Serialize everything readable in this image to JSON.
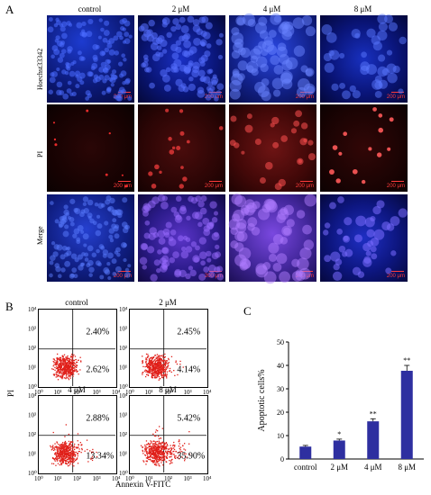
{
  "panel_a": {
    "letter": "A",
    "columns": [
      "control",
      "2 μM",
      "4 μM",
      "8 μM"
    ],
    "rows": [
      "Hoechst33342",
      "PI",
      "Merge"
    ],
    "scale_label": "200 μm"
  },
  "panel_b": {
    "letter": "B",
    "plots": [
      {
        "title": "control",
        "upper_right": "2.40%",
        "lower_right": "2.62%"
      },
      {
        "title": "2 μM",
        "upper_right": "2.45%",
        "lower_right": "4.14%"
      },
      {
        "title": "4 μM",
        "upper_right": "2.88%",
        "lower_right": "13.34%"
      },
      {
        "title": "8 μM",
        "upper_right": "5.42%",
        "lower_right": "35.90%"
      }
    ],
    "xlabel": "Annexin V-FITC",
    "ylabel": "PI",
    "x_ticks": [
      "10⁰",
      "10¹",
      "10²",
      "10³",
      "10⁴"
    ],
    "y_ticks": [
      "10⁰",
      "10¹",
      "10²",
      "10³",
      "10⁴"
    ],
    "colors": {
      "dots": "#e0201a"
    }
  },
  "panel_c": {
    "letter": "C"
  },
  "chart_data": {
    "type": "bar",
    "categories": [
      "control",
      "2 μM",
      "4 μM",
      "8 μM"
    ],
    "values": [
      5.3,
      7.9,
      16.1,
      37.7
    ],
    "errors": [
      0.5,
      0.6,
      1.1,
      2.3
    ],
    "significance": [
      "",
      "*",
      "**",
      "**"
    ],
    "ylabel": "Apoptotic cells%",
    "ylim": [
      0,
      50
    ],
    "yticks": [
      0,
      10,
      20,
      30,
      40,
      50
    ],
    "bar_color": "#2e2fa0"
  }
}
